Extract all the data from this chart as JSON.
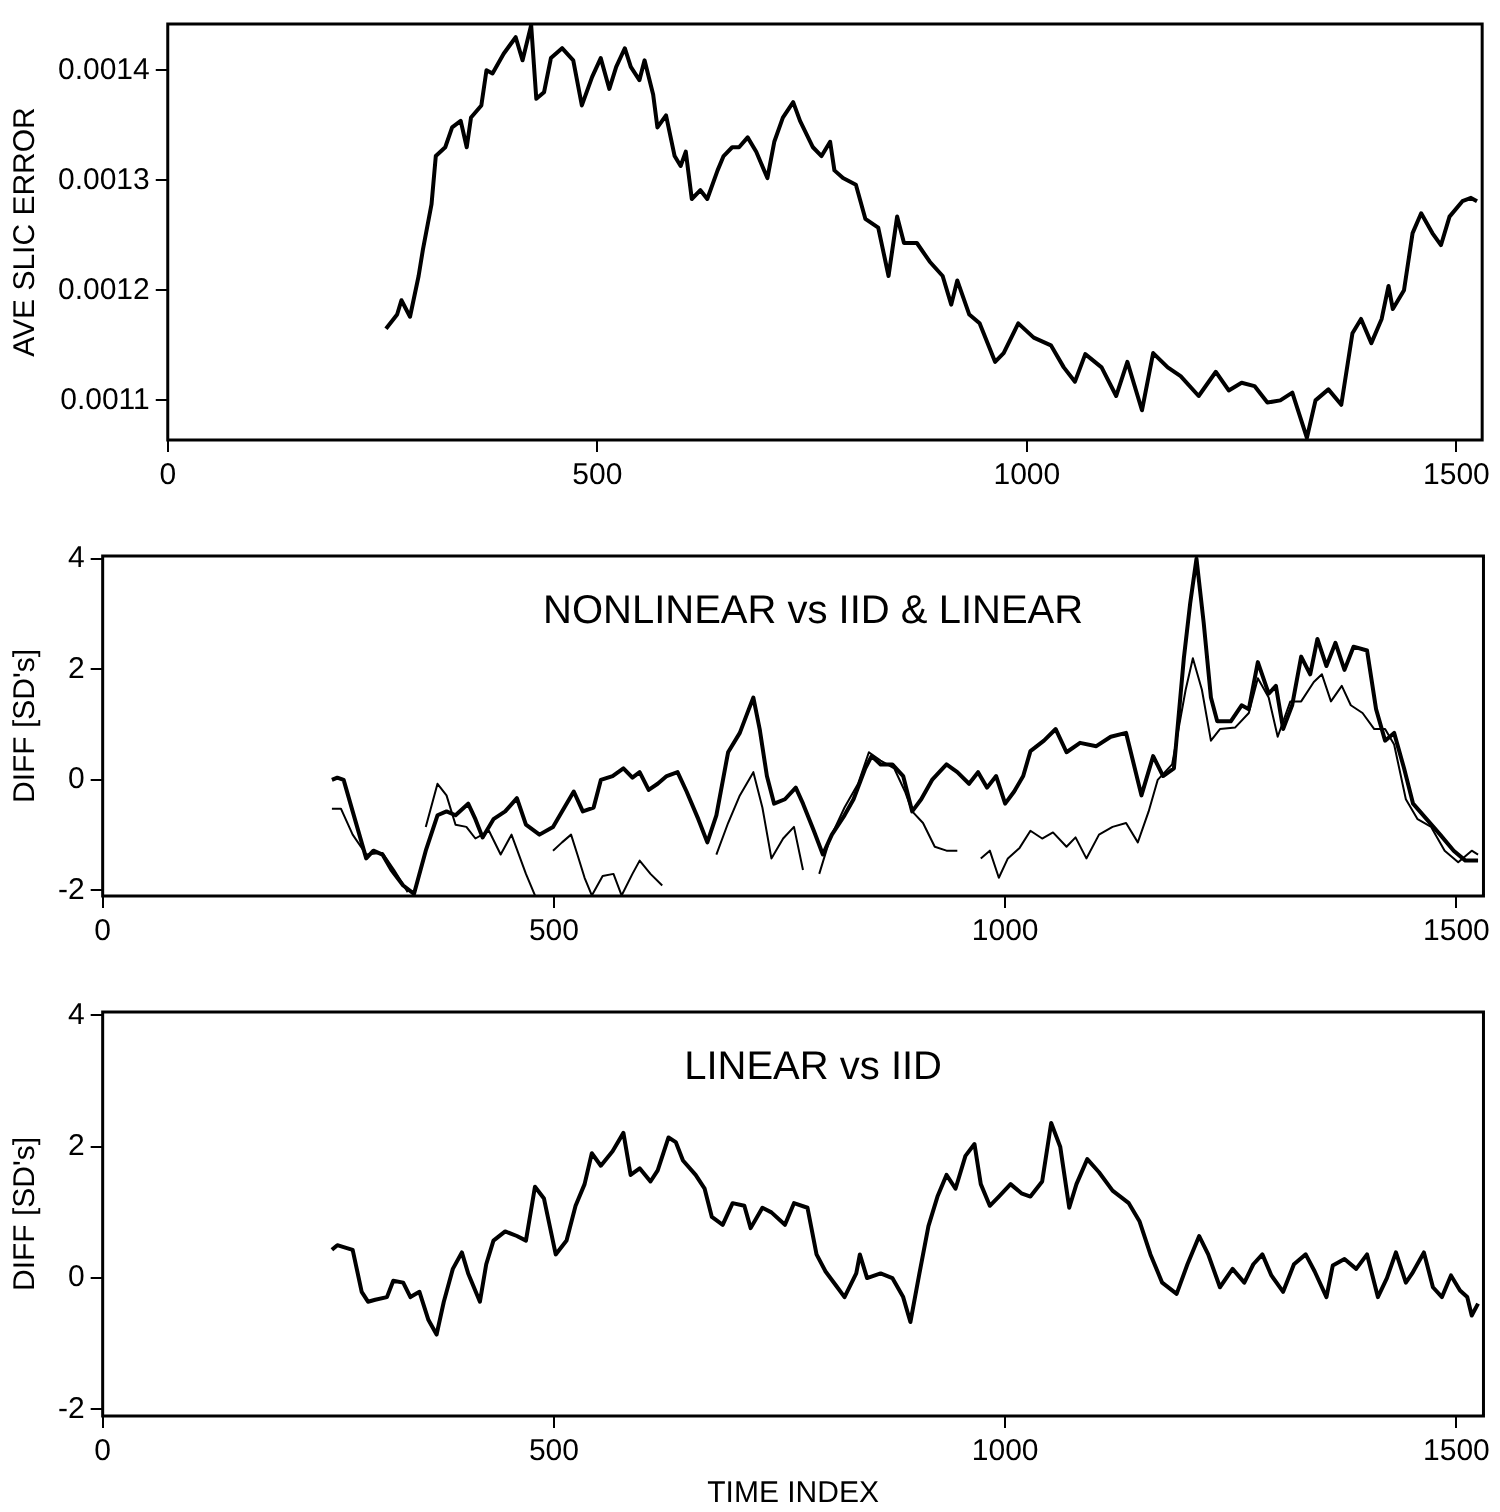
{
  "chart_data": [
    {
      "type": "line",
      "ylabel": "AVE SLIC ERROR",
      "xlim": [
        0,
        1530
      ],
      "xticks": [
        0,
        500,
        1000,
        1500
      ],
      "ylim": [
        0.001064,
        0.001442
      ],
      "yticks": [
        0.0011,
        0.0012,
        0.0013,
        0.0014
      ],
      "grid": false,
      "legend": false,
      "marker": "none",
      "line_style": "solid",
      "series": [
        {
          "color": "#000000",
          "x": [
            254,
            267,
            272,
            282,
            292,
            297,
            307,
            312,
            323,
            331,
            341,
            348,
            353,
            365,
            371,
            378,
            391,
            405,
            413,
            423,
            429,
            438,
            446,
            459,
            472,
            482,
            494,
            504,
            514,
            522,
            532,
            539,
            549,
            555,
            565,
            570,
            580,
            590,
            597,
            603,
            610,
            620,
            628,
            640,
            647,
            657,
            665,
            675,
            685,
            698,
            706,
            716,
            728,
            736,
            751,
            761,
            771,
            776,
            786,
            801,
            812,
            827,
            839,
            849,
            857,
            872,
            887,
            902,
            912,
            919,
            933,
            945,
            963,
            973,
            990,
            1008,
            1028,
            1043,
            1056,
            1068,
            1087,
            1104,
            1117,
            1134,
            1147,
            1164,
            1179,
            1200,
            1220,
            1235,
            1250,
            1265,
            1280,
            1295,
            1309,
            1326,
            1336,
            1351,
            1366,
            1379,
            1389,
            1401,
            1413,
            1421,
            1426,
            1439,
            1449,
            1459,
            1472,
            1482,
            1492,
            1507,
            1517,
            1524
          ],
          "values": [
            0.001165,
            0.001178,
            0.001191,
            0.001176,
            0.001213,
            0.001237,
            0.001278,
            0.001322,
            0.00133,
            0.001348,
            0.001354,
            0.00133,
            0.001357,
            0.001368,
            0.0014,
            0.001397,
            0.001415,
            0.00143,
            0.001409,
            0.001441,
            0.001374,
            0.00138,
            0.001411,
            0.00142,
            0.001409,
            0.001368,
            0.001394,
            0.001411,
            0.001383,
            0.001403,
            0.00142,
            0.001403,
            0.001391,
            0.001409,
            0.001378,
            0.001348,
            0.001359,
            0.001322,
            0.001313,
            0.001326,
            0.001283,
            0.001291,
            0.001283,
            0.001309,
            0.001322,
            0.00133,
            0.00133,
            0.001339,
            0.001326,
            0.001302,
            0.001335,
            0.001357,
            0.001371,
            0.001354,
            0.00133,
            0.001322,
            0.001335,
            0.001309,
            0.001302,
            0.001296,
            0.001265,
            0.001257,
            0.001213,
            0.001267,
            0.001243,
            0.001243,
            0.001226,
            0.001213,
            0.001187,
            0.001209,
            0.001178,
            0.00117,
            0.001135,
            0.001143,
            0.00117,
            0.001157,
            0.00115,
            0.00113,
            0.001117,
            0.001142,
            0.00113,
            0.001104,
            0.001135,
            0.001091,
            0.001143,
            0.00113,
            0.001122,
            0.001104,
            0.001126,
            0.001109,
            0.001116,
            0.001113,
            0.001098,
            0.0011,
            0.001107,
            0.001066,
            0.0011,
            0.00111,
            0.001096,
            0.001161,
            0.001174,
            0.001152,
            0.001174,
            0.001204,
            0.001183,
            0.0012,
            0.001252,
            0.00127,
            0.001252,
            0.001241,
            0.001267,
            0.001281,
            0.001284,
            0.001281
          ]
        }
      ]
    },
    {
      "type": "line",
      "title": "NONLINEAR vs IID & LINEAR",
      "ylabel": "DIFF [SD's]",
      "xlim": [
        0,
        1530
      ],
      "xticks": [
        0,
        500,
        1000,
        1500
      ],
      "ylim": [
        -2.1,
        4.05
      ],
      "yticks": [
        -2,
        0,
        2,
        4
      ],
      "grid": false,
      "legend": false,
      "marker": "none",
      "line_style": "solid",
      "series": [
        {
          "color": "#000000",
          "x": [
            254,
            260,
            267,
            277,
            292,
            300,
            310,
            320,
            333,
            345,
            358,
            371,
            381,
            391,
            405,
            413,
            421,
            433,
            446,
            459,
            469,
            484,
            499,
            509,
            522,
            532,
            544,
            552,
            565,
            577,
            587,
            595,
            605,
            615,
            625,
            637,
            647,
            660,
            670,
            680,
            693,
            706,
            716,
            721,
            728,
            736,
            744,
            756,
            768,
            776,
            788,
            798,
            808,
            822,
            832,
            845,
            852,
            862,
            875,
            887,
            897,
            907,
            919,
            935,
            947,
            960,
            970,
            980,
            990,
            1000,
            1010,
            1020,
            1028,
            1043,
            1056,
            1068,
            1083,
            1101,
            1117,
            1134,
            1151,
            1164,
            1175,
            1187,
            1198,
            1205,
            1212,
            1220,
            1228,
            1235,
            1250,
            1262,
            1270,
            1280,
            1292,
            1300,
            1308,
            1318,
            1328,
            1338,
            1346,
            1356,
            1366,
            1376,
            1386,
            1401,
            1411,
            1421,
            1431,
            1442,
            1452,
            1467,
            1482,
            1497,
            1510,
            1524
          ],
          "values": [
            0,
            0.04,
            0,
            -0.57,
            -1.42,
            -1.28,
            -1.35,
            -1.63,
            -1.91,
            -2.06,
            -1.28,
            -0.64,
            -0.57,
            -0.64,
            -0.43,
            -0.71,
            -1.04,
            -0.71,
            -0.57,
            -0.33,
            -0.81,
            -0.99,
            -0.85,
            -0.57,
            -0.21,
            -0.57,
            -0.5,
            0,
            0.07,
            0.21,
            0.04,
            0.14,
            -0.18,
            -0.07,
            0.07,
            0.14,
            -0.21,
            -0.71,
            -1.13,
            -0.64,
            0.5,
            0.85,
            1.28,
            1.49,
            0.92,
            0.07,
            -0.43,
            -0.35,
            -0.14,
            -0.43,
            -0.92,
            -1.35,
            -0.99,
            -0.64,
            -0.35,
            0.21,
            0.43,
            0.28,
            0.28,
            0.07,
            -0.57,
            -0.35,
            0,
            0.28,
            0.14,
            -0.07,
            0.14,
            -0.14,
            0.07,
            -0.43,
            -0.21,
            0.07,
            0.52,
            0.71,
            0.92,
            0.5,
            0.67,
            0.61,
            0.78,
            0.85,
            -0.28,
            0.43,
            0.07,
            0.21,
            2.2,
            3.19,
            4.0,
            2.84,
            1.49,
            1.06,
            1.06,
            1.35,
            1.28,
            2.13,
            1.56,
            1.7,
            0.92,
            1.35,
            2.23,
            1.91,
            2.55,
            2.06,
            2.48,
            1.99,
            2.41,
            2.34,
            1.28,
            0.71,
            0.85,
            0.21,
            -0.43,
            -0.71,
            -0.99,
            -1.28,
            -1.46,
            -1.46
          ]
        },
        {
          "color": "#000000",
          "x": [
            254,
            264,
            277,
            292,
            310,
            323,
            338,
            345,
            358,
            371,
            381,
            391,
            403,
            413,
            428,
            441,
            453,
            469,
            479,
            489,
            499,
            509,
            519,
            526,
            534,
            542,
            554,
            566,
            575,
            587,
            595,
            607,
            620,
            630,
            645,
            665,
            680,
            693,
            706,
            721,
            731,
            741,
            754,
            766,
            776,
            784,
            794,
            806,
            822,
            837,
            849,
            862,
            877,
            889,
            897,
            909,
            922,
            935,
            947,
            960,
            973,
            983,
            993,
            1003,
            1016,
            1028,
            1041,
            1053,
            1068,
            1078,
            1090,
            1104,
            1119,
            1134,
            1147,
            1159,
            1169,
            1185,
            1200,
            1208,
            1218,
            1228,
            1238,
            1255,
            1270,
            1280,
            1292,
            1302,
            1316,
            1328,
            1342,
            1351,
            1361,
            1373,
            1383,
            1396,
            1409,
            1421,
            1431,
            1444,
            1457,
            1472,
            1487,
            1502,
            1517,
            1524
          ],
          "values": [
            -0.52,
            -0.52,
            -0.99,
            -1.35,
            -1.32,
            -1.63,
            -2.03,
            null,
            -0.85,
            -0.07,
            -0.28,
            -0.81,
            -0.85,
            -1.06,
            -0.92,
            -1.35,
            -0.99,
            -1.7,
            -2.09,
            null,
            -1.28,
            -1.13,
            -0.99,
            -1.35,
            -1.77,
            -2.09,
            -1.74,
            -1.7,
            -2.09,
            -1.7,
            -1.46,
            -1.7,
            -1.91,
            null,
            null,
            null,
            -1.35,
            -0.78,
            -0.28,
            0.14,
            -0.5,
            -1.42,
            -1.06,
            -0.85,
            -1.63,
            null,
            -1.7,
            -1.06,
            -0.5,
            -0.07,
            0.5,
            0.35,
            0.21,
            -0.21,
            -0.57,
            -0.78,
            -1.21,
            -1.28,
            -1.28,
            null,
            -1.42,
            -1.28,
            -1.77,
            -1.42,
            -1.23,
            -0.92,
            -1.06,
            -0.95,
            -1.21,
            -1.04,
            -1.42,
            -0.99,
            -0.85,
            -0.78,
            -1.13,
            -0.57,
            0,
            0.28,
            1.63,
            2.2,
            1.63,
            0.71,
            0.92,
            0.95,
            1.21,
            1.84,
            1.49,
            0.78,
            1.42,
            1.42,
            1.77,
            1.91,
            1.42,
            1.7,
            1.35,
            1.21,
            0.92,
            0.92,
            0.64,
            -0.35,
            -0.71,
            -0.85,
            -1.28,
            -1.49,
            -1.28,
            -1.35
          ]
        }
      ]
    },
    {
      "type": "line",
      "title": "LINEAR vs IID",
      "xlabel": "TIME INDEX",
      "ylabel": "DIFF [SD's]",
      "xlim": [
        0,
        1530
      ],
      "xticks": [
        0,
        500,
        1000,
        1500
      ],
      "ylim": [
        -2.1,
        4.05
      ],
      "yticks": [
        -2,
        0,
        2,
        4
      ],
      "grid": false,
      "legend": false,
      "marker": "none",
      "line_style": "solid",
      "series": [
        {
          "color": "#000000",
          "x": [
            254,
            260,
            267,
            277,
            287,
            294,
            302,
            315,
            322,
            333,
            341,
            351,
            361,
            370,
            378,
            388,
            398,
            405,
            418,
            425,
            433,
            446,
            459,
            469,
            479,
            489,
            502,
            514,
            524,
            534,
            542,
            552,
            565,
            577,
            585,
            595,
            607,
            615,
            627,
            635,
            643,
            657,
            667,
            675,
            687,
            698,
            711,
            718,
            731,
            741,
            756,
            766,
            781,
            791,
            801,
            814,
            822,
            835,
            839,
            847,
            862,
            875,
            887,
            895,
            905,
            915,
            925,
            935,
            945,
            956,
            966,
            973,
            983,
            993,
            1006,
            1018,
            1028,
            1041,
            1051,
            1061,
            1071,
            1079,
            1091,
            1104,
            1119,
            1137,
            1149,
            1161,
            1174,
            1190,
            1202,
            1215,
            1225,
            1238,
            1252,
            1265,
            1275,
            1285,
            1295,
            1308,
            1320,
            1333,
            1343,
            1356,
            1363,
            1376,
            1389,
            1401,
            1413,
            1423,
            1433,
            1444,
            1451,
            1464,
            1474,
            1484,
            1494,
            1504,
            1512,
            1517,
            1524
          ],
          "values": [
            0.43,
            0.5,
            0.47,
            0.43,
            -0.21,
            -0.36,
            -0.33,
            -0.29,
            -0.04,
            -0.07,
            -0.29,
            -0.21,
            -0.64,
            -0.86,
            -0.36,
            0.14,
            0.39,
            0.07,
            -0.36,
            0.21,
            0.57,
            0.71,
            0.64,
            0.57,
            1.39,
            1.21,
            0.36,
            0.57,
            1.1,
            1.43,
            1.9,
            1.71,
            1.93,
            2.21,
            1.57,
            1.67,
            1.47,
            1.64,
            2.14,
            2.07,
            1.79,
            1.57,
            1.36,
            0.93,
            0.81,
            1.14,
            1.1,
            0.76,
            1.07,
            1.0,
            0.81,
            1.14,
            1.07,
            0.36,
            0.1,
            -0.14,
            -0.29,
            0.07,
            0.36,
            0,
            0.07,
            0,
            -0.29,
            -0.67,
            0.07,
            0.79,
            1.24,
            1.57,
            1.36,
            1.86,
            2.04,
            1.43,
            1.1,
            1.24,
            1.43,
            1.29,
            1.24,
            1.47,
            2.36,
            2.0,
            1.07,
            1.43,
            1.81,
            1.61,
            1.33,
            1.14,
            0.86,
            0.36,
            -0.07,
            -0.24,
            0.21,
            0.64,
            0.36,
            -0.14,
            0.14,
            -0.07,
            0.21,
            0.36,
            0.04,
            -0.21,
            0.21,
            0.36,
            0.1,
            -0.29,
            0.19,
            0.29,
            0.14,
            0.36,
            -0.29,
            0,
            0.39,
            -0.07,
            0.07,
            0.39,
            -0.14,
            -0.29,
            0.04,
            -0.19,
            -0.29,
            -0.57,
            -0.39
          ]
        }
      ]
    }
  ]
}
